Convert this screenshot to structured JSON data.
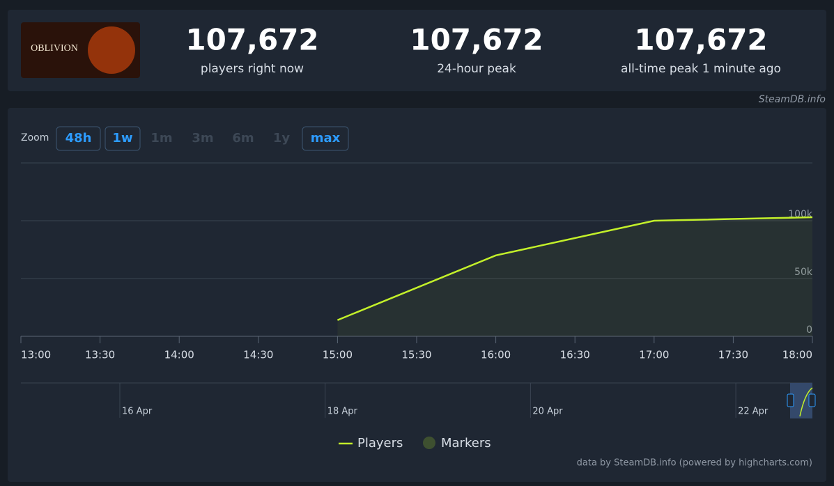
{
  "header": {
    "logo_text": "OBLIVION",
    "stats": [
      {
        "value": "107,672",
        "label": "players right now"
      },
      {
        "value": "107,672",
        "label": "24-hour peak"
      },
      {
        "value": "107,672",
        "label": "all-time peak 1 minute ago"
      }
    ],
    "source": "SteamDB.info"
  },
  "zoom": {
    "label": "Zoom",
    "buttons": [
      {
        "label": "48h",
        "enabled": true
      },
      {
        "label": "1w",
        "enabled": true
      },
      {
        "label": "1m",
        "enabled": false
      },
      {
        "label": "3m",
        "enabled": false
      },
      {
        "label": "6m",
        "enabled": false
      },
      {
        "label": "1y",
        "enabled": false
      },
      {
        "label": "max",
        "enabled": true
      }
    ]
  },
  "chart_data": {
    "type": "line",
    "x": [
      "15:00",
      "16:00",
      "17:00",
      "18:00"
    ],
    "series": [
      {
        "name": "Players",
        "color": "#c3f02a",
        "values": [
          14000,
          70000,
          100000,
          103000
        ]
      }
    ],
    "legend_extra": [
      {
        "name": "Markers",
        "color": "#3e5030"
      }
    ],
    "xlim": [
      "13:00",
      "18:00"
    ],
    "xticks": [
      "13:00",
      "13:30",
      "14:00",
      "14:30",
      "15:00",
      "15:30",
      "16:00",
      "16:30",
      "17:00",
      "17:30",
      "18:00"
    ],
    "ylim": [
      0,
      150000
    ],
    "yticks": [
      {
        "value": 0,
        "label": "0"
      },
      {
        "value": 50000,
        "label": "50k"
      },
      {
        "value": 100000,
        "label": "100k"
      }
    ],
    "grid": true
  },
  "navigator": {
    "labels": [
      "16 Apr",
      "18 Apr",
      "20 Apr",
      "22 Apr"
    ]
  },
  "credits": "data by SteamDB.info (powered by highcharts.com)"
}
